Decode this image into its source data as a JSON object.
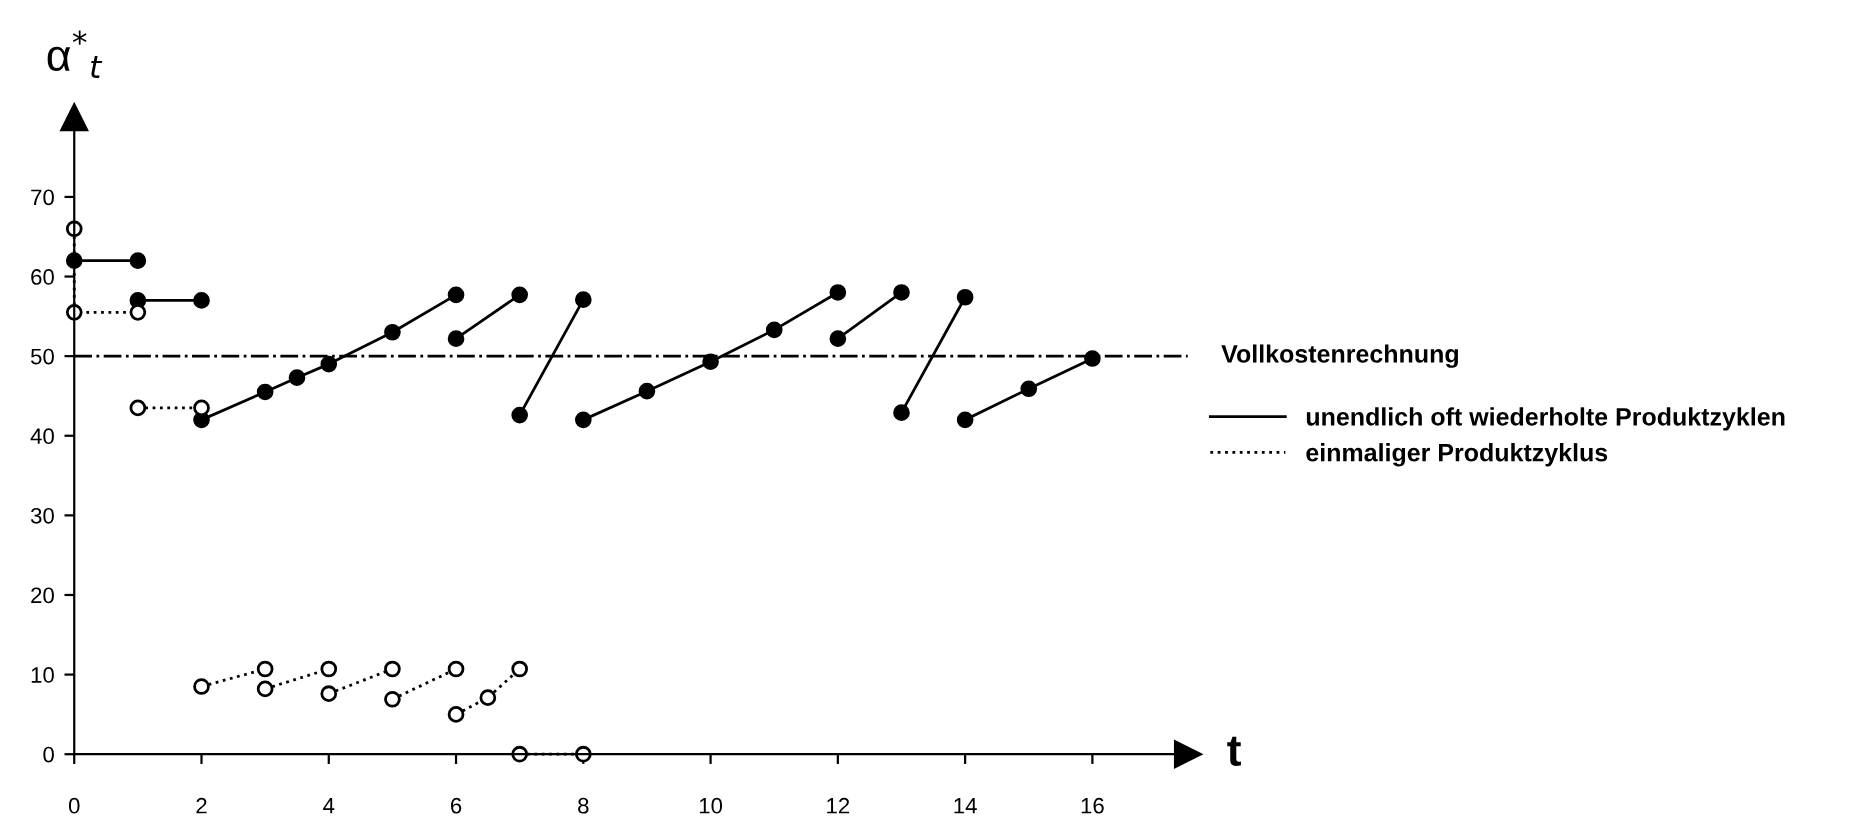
{
  "chart_data": {
    "type": "line",
    "xlabel": "t",
    "ylabel": "α$^{*}$$_{t}$",
    "xlim": [
      0,
      17.5
    ],
    "ylim": [
      0,
      80
    ],
    "xticks": [
      0,
      2,
      4,
      6,
      8,
      10,
      12,
      14,
      16
    ],
    "yticks": [
      0,
      10,
      20,
      30,
      40,
      50,
      60,
      70
    ],
    "grid": false,
    "legend": "right",
    "ref_lines": [
      {
        "axis": "y",
        "value": 50,
        "label": "Vollkostenrechnung",
        "line_style": "dashdot",
        "color": "#000000"
      }
    ],
    "series": [
      {
        "name": "unendlich oft wiederholte Produktzyklen",
        "color": "#000000",
        "line_style": "solid",
        "marker": "circle",
        "x": [
          0,
          1,
          null,
          1,
          2,
          null,
          2,
          3,
          3.5,
          4,
          5,
          6,
          null,
          6,
          7,
          null,
          7,
          8,
          null,
          8,
          9,
          10,
          11,
          12,
          null,
          12,
          13,
          null,
          13,
          14,
          null,
          14,
          15,
          16
        ],
        "values": [
          62,
          62,
          null,
          57,
          57,
          null,
          42,
          45.5,
          47.3,
          49,
          53,
          57.7,
          null,
          52.2,
          57.7,
          null,
          42.6,
          57.1,
          null,
          42,
          45.6,
          49.3,
          53.3,
          58,
          null,
          52.2,
          58,
          null,
          42.9,
          57.4,
          null,
          42,
          45.9,
          49.7
        ]
      },
      {
        "name": "einmaliger Produktzyklus",
        "color": "#000000",
        "line_style": "dotted",
        "marker": "circle",
        "x": [
          0,
          0,
          1,
          null,
          1,
          2,
          null,
          2,
          3,
          null,
          3,
          4,
          null,
          4,
          5,
          null,
          5,
          6,
          null,
          6,
          6.5,
          7,
          null,
          7,
          8
        ],
        "values": [
          66,
          55.5,
          55.5,
          null,
          43.5,
          43.5,
          null,
          8.5,
          10.7,
          null,
          8.2,
          10.7,
          null,
          7.6,
          10.7,
          null,
          6.9,
          10.7,
          null,
          5,
          7.1,
          10.7,
          null,
          0,
          0
        ]
      }
    ]
  }
}
